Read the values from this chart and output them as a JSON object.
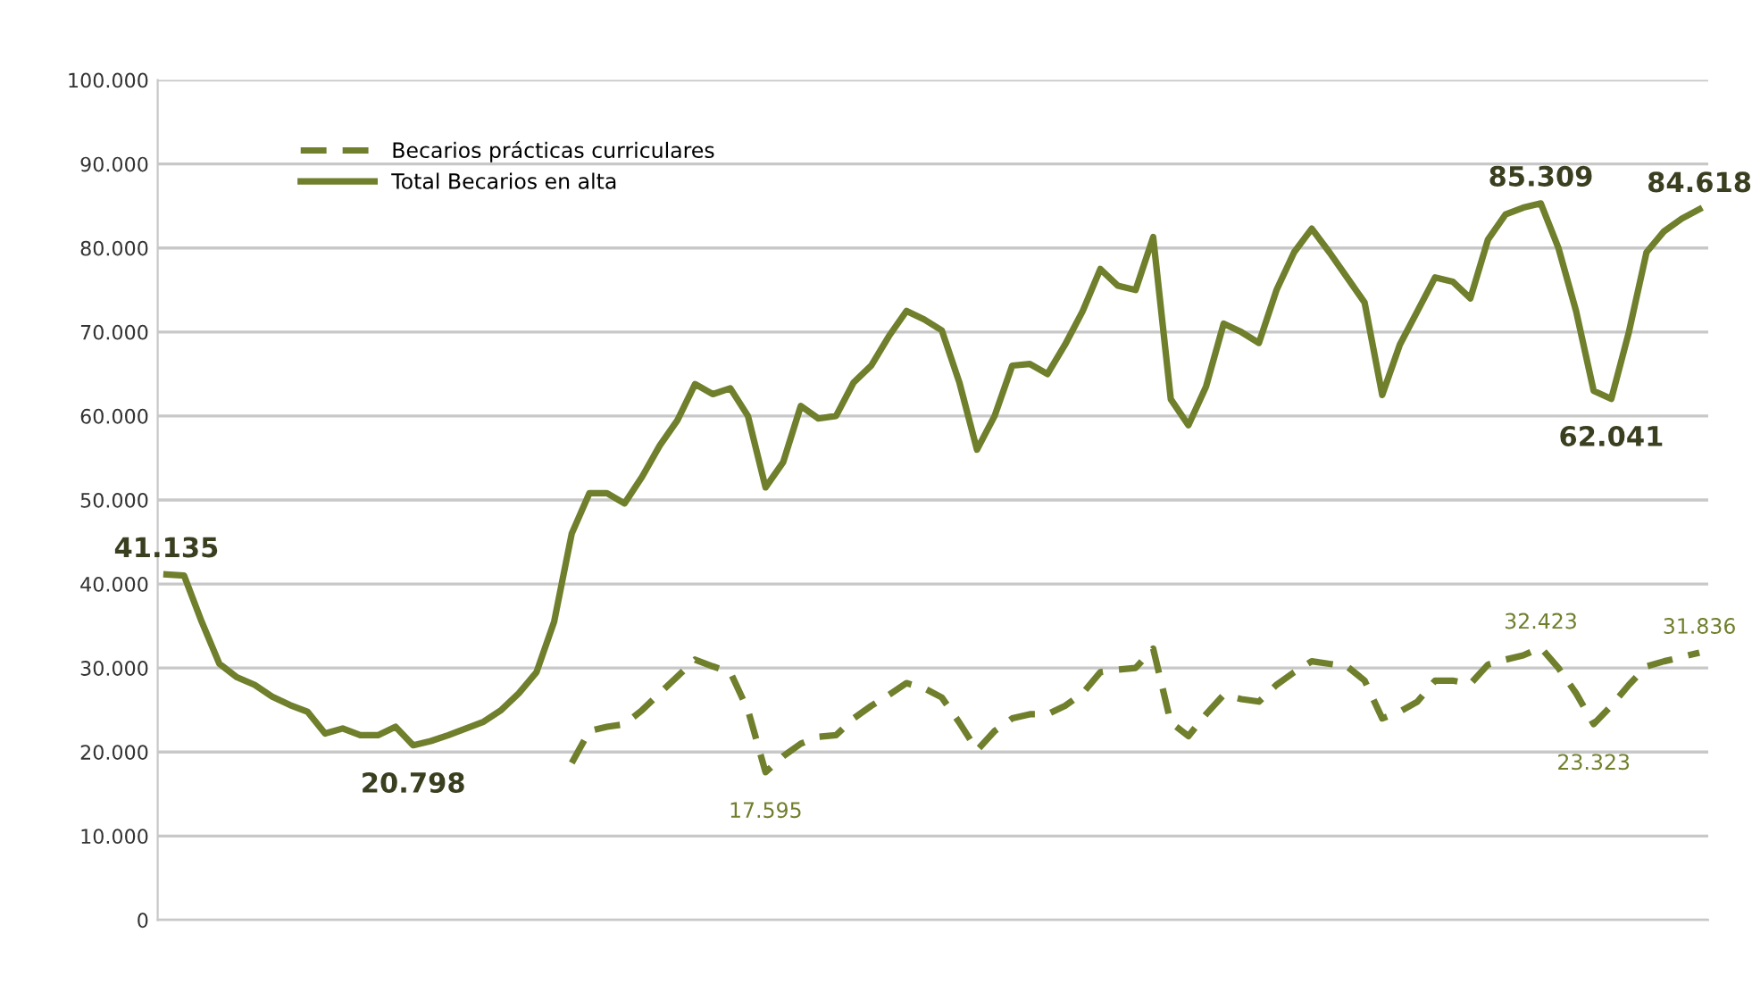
{
  "chart_data": {
    "type": "line",
    "categories": [
      null,
      null,
      null,
      null,
      null,
      null,
      null,
      null,
      null,
      null,
      null,
      null,
      null,
      null,
      null,
      null,
      null,
      null,
      null,
      null,
      null,
      null,
      null,
      null,
      null,
      null,
      null,
      null,
      null,
      null,
      null,
      null,
      null,
      null,
      null,
      null,
      null,
      null,
      null,
      null,
      null,
      null,
      null,
      null,
      null,
      null,
      null,
      null,
      null,
      null,
      null,
      null,
      null,
      null,
      null,
      null,
      null,
      null,
      null,
      null,
      null,
      null,
      null,
      null,
      null,
      null,
      null,
      null,
      null,
      null,
      null,
      null,
      null,
      null,
      null,
      null,
      null,
      null,
      null,
      null,
      null,
      null,
      null,
      null,
      null,
      null,
      null,
      null
    ],
    "series": [
      {
        "name": "Becarios prácticas curriculares",
        "color": "#6f7f2c",
        "line_style": "dashed",
        "values": [
          null,
          null,
          null,
          null,
          null,
          null,
          null,
          null,
          null,
          null,
          null,
          null,
          null,
          null,
          null,
          null,
          null,
          null,
          null,
          null,
          null,
          null,
          null,
          18700,
          22500,
          23000,
          23300,
          25000,
          27000,
          29000,
          31000,
          30200,
          29500,
          25000,
          17595,
          19500,
          21000,
          21800,
          22000,
          24000,
          25500,
          26800,
          28200,
          27600,
          26500,
          23500,
          20200,
          22500,
          24000,
          24500,
          24500,
          25500,
          27000,
          29500,
          29800,
          30000,
          32300,
          23500,
          21900,
          24500,
          26800,
          26300,
          26000,
          28000,
          29500,
          30800,
          30500,
          30200,
          28500,
          24000,
          24800,
          26000,
          28500,
          28500,
          28100,
          30400,
          31000,
          31500,
          32423,
          30000,
          27000,
          23323,
          25500,
          28000,
          30200,
          30800,
          31300,
          31836
        ],
        "value_labels": [
          null,
          null,
          null,
          null,
          null,
          null,
          null,
          null,
          null,
          null,
          null,
          null,
          null,
          null,
          null,
          null,
          null,
          null,
          null,
          null,
          null,
          null,
          null,
          null,
          null,
          null,
          null,
          null,
          null,
          null,
          null,
          null,
          null,
          null,
          "17.595",
          null,
          null,
          null,
          null,
          null,
          null,
          null,
          null,
          null,
          null,
          null,
          null,
          null,
          null,
          null,
          null,
          null,
          null,
          null,
          null,
          null,
          null,
          null,
          null,
          null,
          null,
          null,
          null,
          null,
          null,
          null,
          null,
          null,
          null,
          null,
          null,
          null,
          null,
          null,
          null,
          null,
          null,
          null,
          "32.423",
          null,
          null,
          "23.323",
          null,
          null,
          null,
          null,
          null,
          "31.836"
        ]
      },
      {
        "name": "Total Becarios en alta",
        "color": "#6f7f2c",
        "line_style": "solid",
        "values": [
          41135,
          41000,
          35500,
          30500,
          28900,
          28000,
          26600,
          25600,
          24800,
          22200,
          22800,
          22000,
          22000,
          23000,
          20798,
          21300,
          22000,
          22800,
          23600,
          25000,
          27000,
          29500,
          35500,
          46000,
          50800,
          50800,
          49600,
          52800,
          56500,
          59500,
          63800,
          62600,
          63300,
          60000,
          51500,
          54500,
          61200,
          59700,
          60000,
          64000,
          66000,
          69500,
          72500,
          71500,
          70200,
          64000,
          56000,
          60000,
          66000,
          66200,
          65000,
          68500,
          72500,
          77500,
          75500,
          75000,
          81300,
          62000,
          58900,
          63500,
          71000,
          70000,
          68700,
          75000,
          79500,
          82300,
          79500,
          76500,
          73500,
          62500,
          68500,
          72500,
          76500,
          76000,
          74000,
          81000,
          84000,
          84800,
          85309,
          80000,
          72500,
          63000,
          62041,
          70000,
          79500,
          82000,
          83500,
          84618
        ],
        "value_labels": [
          "41.135",
          null,
          null,
          null,
          null,
          null,
          null,
          null,
          null,
          null,
          null,
          null,
          null,
          null,
          "20.798",
          null,
          null,
          null,
          null,
          null,
          null,
          null,
          null,
          null,
          null,
          null,
          null,
          null,
          null,
          null,
          null,
          null,
          null,
          null,
          null,
          null,
          null,
          null,
          null,
          null,
          null,
          null,
          null,
          null,
          null,
          null,
          null,
          null,
          null,
          null,
          null,
          null,
          null,
          null,
          null,
          null,
          null,
          null,
          null,
          null,
          null,
          null,
          null,
          null,
          null,
          null,
          null,
          null,
          null,
          null,
          null,
          null,
          null,
          null,
          null,
          null,
          null,
          null,
          "85.309",
          null,
          null,
          null,
          "62.041",
          null,
          null,
          null,
          null,
          "84.618"
        ]
      }
    ],
    "ylim": [
      0,
      100000
    ],
    "yticks": [
      0,
      {
        "value": 10000,
        "label": "10.000"
      },
      {
        "value": 20000,
        "label": "20.000"
      },
      {
        "value": 30000,
        "label": "30.000"
      },
      {
        "value": 40000,
        "label": "40.000"
      },
      {
        "value": 50000,
        "label": "50.000"
      },
      {
        "value": 60000,
        "label": "60.000"
      },
      {
        "value": 70000,
        "label": "70.000"
      },
      {
        "value": 80000,
        "label": "80.000"
      },
      {
        "value": 90000,
        "label": "90.000"
      },
      {
        "value": 100000,
        "label": "100.000"
      }
    ],
    "grid": "y",
    "legend": "top left",
    "marker": "none"
  }
}
